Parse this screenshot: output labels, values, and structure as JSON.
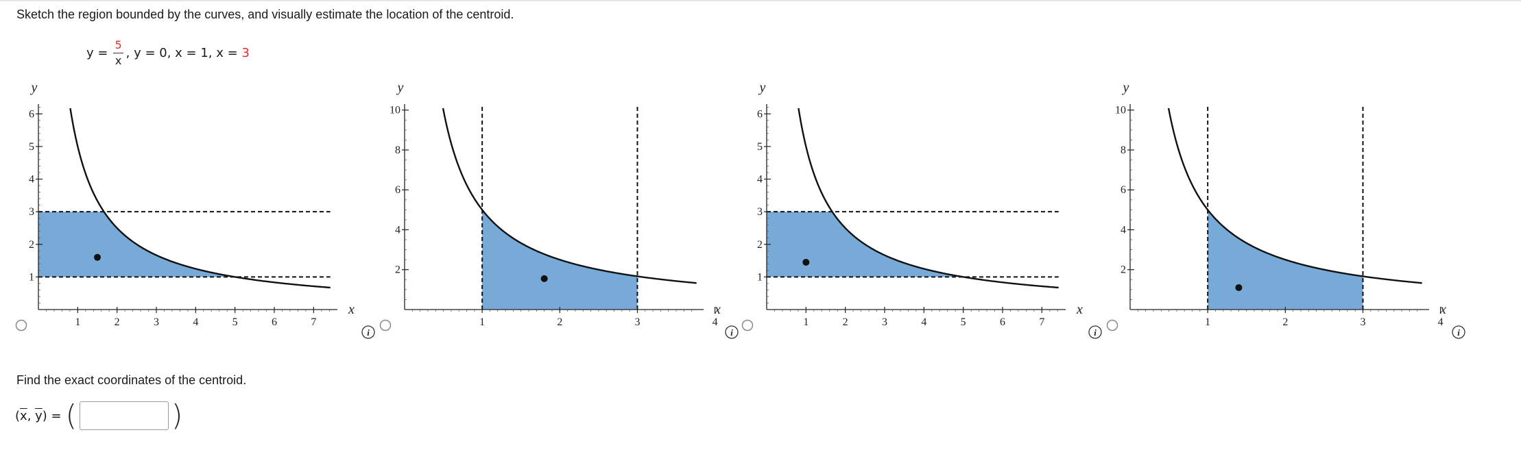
{
  "instruction": "Sketch the region bounded by the curves, and visually estimate the location of the centroid.",
  "equation": {
    "lhs": "y = ",
    "numerator": "5",
    "denominator": "x",
    "rest_a": ", y = 0, x = 1, x = ",
    "rest_b": "3"
  },
  "colors": {
    "fill": "#77aad6",
    "red": "#e8292b",
    "curve": "#111111"
  },
  "options": [
    {
      "id": "A",
      "xlim": [
        0,
        7.5
      ],
      "ylim": [
        0,
        6.3
      ],
      "xticks": [
        1,
        2,
        3,
        4,
        5,
        6,
        7
      ],
      "yticks": [
        1,
        2,
        3,
        4,
        5,
        6
      ],
      "xlabel": "x",
      "ylabel": "y",
      "region": "horizontal",
      "bounds": [
        1,
        3
      ],
      "centroid": [
        1.5,
        1.6
      ]
    },
    {
      "id": "B",
      "xlim": [
        0,
        3.8
      ],
      "ylim": [
        0,
        10.3
      ],
      "xticks": [
        1,
        2,
        3,
        4
      ],
      "yticks": [
        2,
        4,
        6,
        8,
        10
      ],
      "xlabel": "x",
      "ylabel": "y",
      "region": "vertical",
      "bounds": [
        1,
        3
      ],
      "centroid": [
        1.8,
        1.55
      ]
    },
    {
      "id": "C",
      "xlim": [
        0,
        7.5
      ],
      "ylim": [
        0,
        6.3
      ],
      "xticks": [
        1,
        2,
        3,
        4,
        5,
        6,
        7
      ],
      "yticks": [
        1,
        2,
        3,
        4,
        5,
        6
      ],
      "xlabel": "x",
      "ylabel": "y",
      "region": "horizontal",
      "bounds": [
        1,
        3
      ],
      "centroid": [
        1.0,
        1.45
      ]
    },
    {
      "id": "D",
      "xlim": [
        0,
        3.8
      ],
      "ylim": [
        0,
        10.3
      ],
      "xticks": [
        1,
        2,
        3,
        4
      ],
      "yticks": [
        2,
        4,
        6,
        8,
        10
      ],
      "xlabel": "x",
      "ylabel": "y",
      "region": "vertical",
      "bounds": [
        1,
        3
      ],
      "centroid": [
        1.4,
        1.1
      ]
    }
  ],
  "info_icon": "info-icon",
  "find_prompt": "Find the exact coordinates of the centroid.",
  "answer": {
    "label_x": "x",
    "label_y": "y",
    "value": ""
  }
}
